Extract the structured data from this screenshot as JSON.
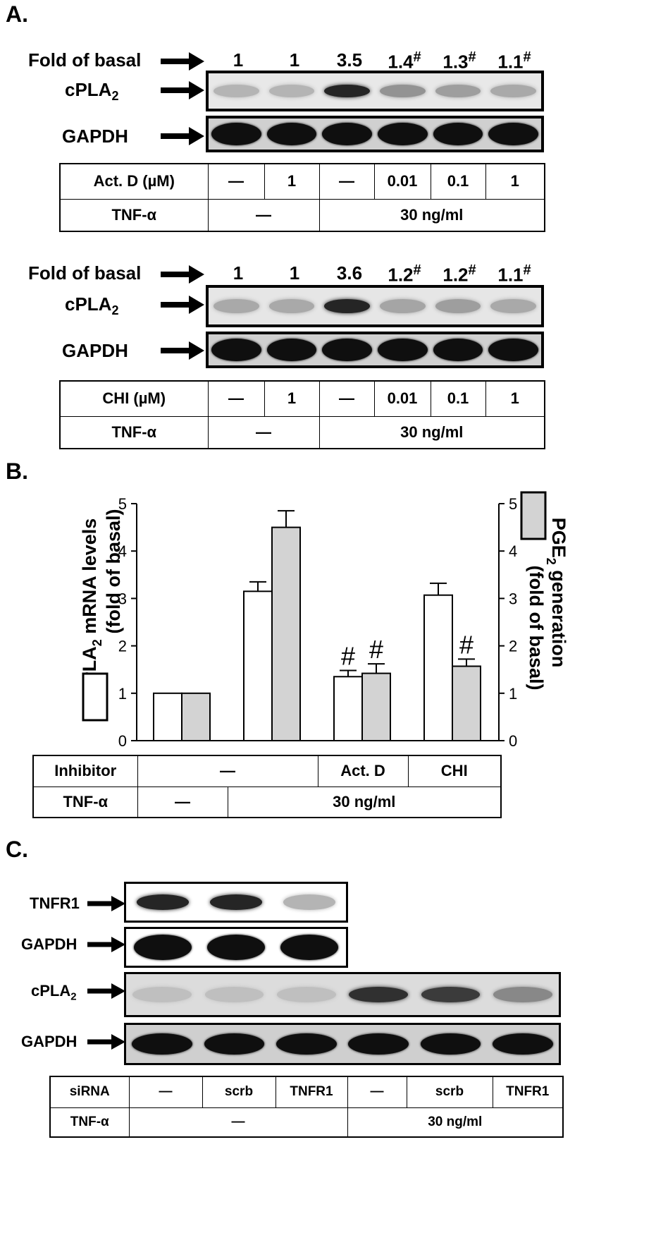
{
  "panels": {
    "a": "A.",
    "b": "B.",
    "c": "C."
  },
  "panel_a": {
    "top": {
      "fold_label": "Fold of basal",
      "folds": [
        {
          "v": "1",
          "mark": ""
        },
        {
          "v": "1",
          "mark": ""
        },
        {
          "v": "3.5",
          "mark": ""
        },
        {
          "v": "1.4",
          "mark": "#"
        },
        {
          "v": "1.3",
          "mark": "#"
        },
        {
          "v": "1.1",
          "mark": "#"
        }
      ],
      "blot1_label": "cPLA",
      "blot1_sub": "2",
      "blot2_label": "GAPDH",
      "row1_label": "Act. D (µM)",
      "row1_cells": [
        "—",
        "1",
        "—",
        "0.01",
        "0.1",
        "1"
      ],
      "row2_label": "TNF-α",
      "row2_cells": [
        "—",
        "30 ng/ml"
      ],
      "cpla2_intensity": [
        0.25,
        0.25,
        0.9,
        0.4,
        0.35,
        0.3
      ]
    },
    "bottom": {
      "fold_label": "Fold of basal",
      "folds": [
        {
          "v": "1",
          "mark": ""
        },
        {
          "v": "1",
          "mark": ""
        },
        {
          "v": "3.6",
          "mark": ""
        },
        {
          "v": "1.2",
          "mark": "#"
        },
        {
          "v": "1.2",
          "mark": "#"
        },
        {
          "v": "1.1",
          "mark": "#"
        }
      ],
      "blot1_label": "cPLA",
      "blot1_sub": "2",
      "blot2_label": "GAPDH",
      "row1_label": "CHI (µM)",
      "row1_cells": [
        "—",
        "1",
        "—",
        "0.01",
        "0.1",
        "1"
      ],
      "row2_label": "TNF-α",
      "row2_cells": [
        "—",
        "30 ng/ml"
      ],
      "cpla2_intensity": [
        0.3,
        0.3,
        0.9,
        0.32,
        0.35,
        0.3
      ]
    }
  },
  "chart_data": {
    "type": "bar",
    "title": "",
    "categories": [
      "1",
      "2",
      "3",
      "4"
    ],
    "series": [
      {
        "name": "cPLA2 mRNA levels (fold of basal)",
        "values": [
          1.0,
          3.15,
          1.35,
          3.07
        ],
        "errors": [
          0,
          0.2,
          0.13,
          0.25
        ],
        "color": "#ffffff",
        "axis": "left"
      },
      {
        "name": "PGE2 generation (fold of basal)",
        "values": [
          1.0,
          4.5,
          1.42,
          1.57
        ],
        "errors": [
          0,
          0.35,
          0.2,
          0.15
        ],
        "color": "#d3d3d3",
        "axis": "right"
      }
    ],
    "annotations": [
      {
        "category": 2,
        "series": 0,
        "text": "#"
      },
      {
        "category": 2,
        "series": 1,
        "text": "#"
      },
      {
        "category": 3,
        "series": 1,
        "text": "#"
      }
    ],
    "ylim": [
      0,
      5
    ],
    "yticks": [
      "0",
      "1",
      "2",
      "3",
      "4",
      "5"
    ],
    "left_ylabel_main": "cPLA",
    "left_ylabel_sub": "2",
    "left_ylabel_rest": " mRNA levels",
    "left_ylabel_line2": "(fold of basal)",
    "right_ylabel_main": "PGE",
    "right_ylabel_sub": "2",
    "right_ylabel_rest": " generation",
    "right_ylabel_line2": "(fold of basal)",
    "grid": false
  },
  "panel_b_table": {
    "row1_label": "Inhibitor",
    "row1_cells": [
      "—",
      "Act. D",
      "CHI"
    ],
    "row2_label": "TNF-α",
    "row2_cells": [
      "—",
      "30 ng/ml"
    ]
  },
  "panel_c": {
    "tnfr1_label": "TNFR1",
    "gapdh1_label": "GAPDH",
    "cpla2_label": "cPLA",
    "cpla2_sub": "2",
    "gapdh2_label": "GAPDH",
    "tnfr1_intensity": [
      0.9,
      0.9,
      0.25
    ],
    "cpla2_intensity": [
      0.2,
      0.2,
      0.2,
      0.85,
      0.8,
      0.45
    ],
    "row1_label": "siRNA",
    "row1_cells": [
      "—",
      "scrb",
      "TNFR1",
      "—",
      "scrb",
      "TNFR1"
    ],
    "row2_label": "TNF-α",
    "row2_cells": [
      "—",
      "30 ng/ml"
    ]
  }
}
